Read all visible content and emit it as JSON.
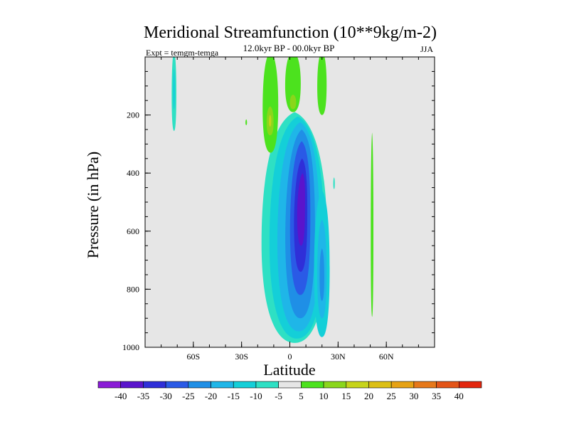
{
  "chart_data": {
    "type": "contour",
    "title": "Meridional Streamfunction (10**9kg/m-2)",
    "subtitle": "12.0kyr BP - 00.0kyr BP",
    "left_label": "Expt = temgm-temga",
    "right_label": "JJA",
    "xlabel": "Latitude",
    "ylabel": "Pressure (in hPa)",
    "xlim": [
      -90,
      90
    ],
    "ylim": [
      1000,
      0
    ],
    "x_ticks": [
      -60,
      -30,
      0,
      30,
      60
    ],
    "x_tick_labels": [
      "60S",
      "30S",
      "0",
      "30N",
      "60N"
    ],
    "y_ticks": [
      200,
      400,
      600,
      800,
      1000
    ],
    "y_tick_labels": [
      "200",
      "400",
      "600",
      "800",
      "1000"
    ],
    "contour_levels": [
      -40,
      -35,
      -30,
      -25,
      -20,
      -15,
      -10,
      -5,
      5,
      10,
      15,
      20,
      25,
      30,
      35,
      40
    ],
    "colorbar_labels": [
      "-40",
      "-35",
      "-30",
      "-25",
      "-20",
      "-15",
      "-10",
      "-5",
      "5",
      "10",
      "15",
      "20",
      "25",
      "30",
      "35",
      "40"
    ],
    "colorbar_colors": [
      "#8a1cd6",
      "#5a14cc",
      "#2f2fd8",
      "#2a5ae6",
      "#1f8fe6",
      "#1fb6e8",
      "#14cfd8",
      "#2ee0c4",
      "#e6e6e6",
      "#4ce21e",
      "#8ad61c",
      "#c6d41a",
      "#dcbf14",
      "#e6a214",
      "#e6781a",
      "#e35418",
      "#e3260e"
    ],
    "background_color": "#e6e6e6",
    "features": [
      {
        "name": "main-negative-cell",
        "center_lat": 8,
        "lat_range": [
          -18,
          24
        ],
        "pressure_range": [
          190,
          985
        ],
        "min_value": -35
      },
      {
        "name": "secondary-negative-lobe",
        "center_lat": 20,
        "lat_range": [
          14,
          26
        ],
        "pressure_range": [
          450,
          970
        ],
        "min_value": -20
      },
      {
        "name": "positive-upper-ne",
        "center_lat": -12,
        "lat_range": [
          -17,
          -7
        ],
        "pressure_range": [
          0,
          330
        ],
        "max_value": 15
      },
      {
        "name": "positive-upper-eq",
        "center_lat": 2,
        "lat_range": [
          -3,
          7
        ],
        "pressure_range": [
          0,
          180
        ],
        "max_value": 15
      },
      {
        "name": "positive-upper-20n",
        "center_lat": 20,
        "lat_range": [
          17,
          23
        ],
        "pressure_range": [
          0,
          200
        ],
        "max_value": 10
      },
      {
        "name": "negative-streak-72s",
        "center_lat": -72,
        "lat_range": [
          -73,
          -70
        ],
        "pressure_range": [
          0,
          250
        ],
        "min_value": -10
      },
      {
        "name": "positive-streak-51n",
        "center_lat": 51,
        "lat_range": [
          50,
          52
        ],
        "pressure_range": [
          260,
          890
        ],
        "max_value": 10
      }
    ]
  }
}
